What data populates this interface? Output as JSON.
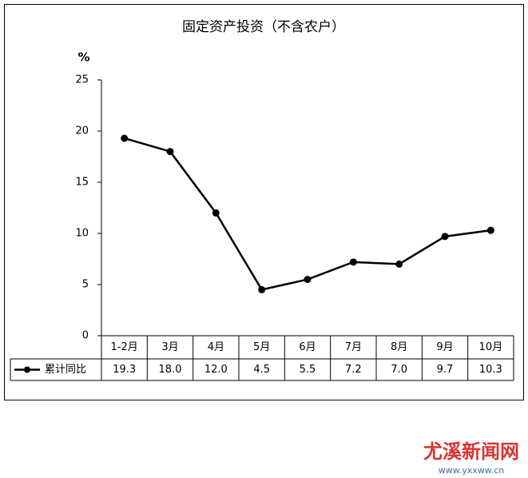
{
  "chart_data": {
    "type": "line",
    "title": "固定资产投资（不含农户）",
    "y_label": "%",
    "categories": [
      "1-2月",
      "3月",
      "4月",
      "5月",
      "6月",
      "7月",
      "8月",
      "9月",
      "10月"
    ],
    "series": [
      {
        "name": "累计同比",
        "color": "#000000",
        "values": [
          19.3,
          18,
          12,
          4.5,
          5.5,
          7.2,
          7,
          9.7,
          10.3
        ],
        "value_labels": [
          "19.3",
          "18.0",
          "12.0",
          "4.5",
          "5.5",
          "7.2",
          "7.0",
          "9.7",
          "10.3"
        ]
      }
    ],
    "ylim": [
      0,
      25
    ],
    "yticks": [
      0,
      5,
      10,
      15,
      20,
      25
    ],
    "grid": false,
    "data_table": true
  },
  "watermark": {
    "name": "尤溪新闻网",
    "url": "www.yxxww.cn"
  }
}
